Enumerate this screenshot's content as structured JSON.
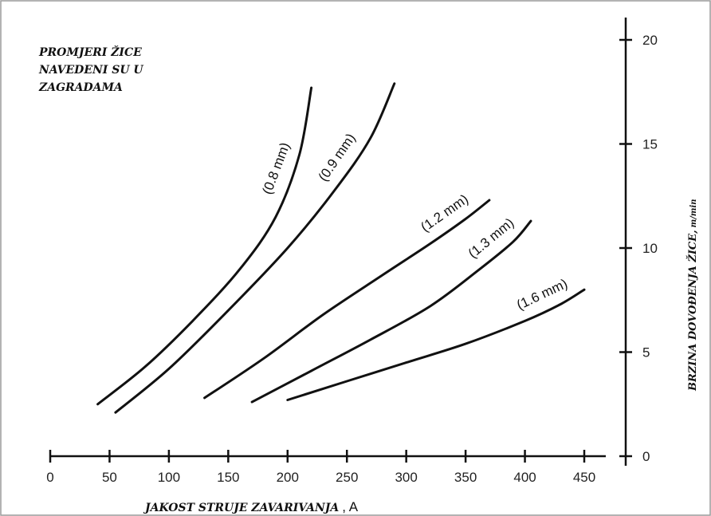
{
  "chart_data": {
    "type": "line",
    "annotation": [
      "PROMJERI ŽICE",
      "NAVEDENI SU U",
      "ZAGRADAMA"
    ],
    "xlabel": "JAKOST STRUJE ZAVARIVANJA",
    "xlabel_unit": ", A",
    "ylabel": "BRZINA DOVOĐENJA ŽICE,",
    "ylabel_unit": "m/min",
    "xlim": [
      0,
      450
    ],
    "ylim": [
      0,
      20
    ],
    "x_ticks": [
      0,
      50,
      100,
      150,
      200,
      250,
      300,
      350,
      400,
      450
    ],
    "y_ticks": [
      0,
      5,
      10,
      15,
      20
    ],
    "grid": false,
    "y_axis_position": "right",
    "series": [
      {
        "name": "(0.8 mm)",
        "points": [
          [
            40,
            2.5
          ],
          [
            80,
            4.3
          ],
          [
            120,
            6.5
          ],
          [
            160,
            9.0
          ],
          [
            190,
            11.5
          ],
          [
            210,
            14.5
          ],
          [
            220,
            17.7
          ]
        ]
      },
      {
        "name": "(0.9 mm)",
        "points": [
          [
            55,
            2.1
          ],
          [
            100,
            4.2
          ],
          [
            150,
            7.0
          ],
          [
            200,
            10.0
          ],
          [
            240,
            12.8
          ],
          [
            270,
            15.3
          ],
          [
            290,
            17.9
          ]
        ]
      },
      {
        "name": "(1.2 mm)",
        "points": [
          [
            130,
            2.8
          ],
          [
            180,
            4.7
          ],
          [
            230,
            6.8
          ],
          [
            280,
            8.7
          ],
          [
            320,
            10.2
          ],
          [
            350,
            11.4
          ],
          [
            370,
            12.3
          ]
        ]
      },
      {
        "name": "(1.3 mm)",
        "points": [
          [
            170,
            2.6
          ],
          [
            220,
            4.1
          ],
          [
            270,
            5.6
          ],
          [
            320,
            7.2
          ],
          [
            360,
            8.9
          ],
          [
            390,
            10.3
          ],
          [
            405,
            11.3
          ]
        ]
      },
      {
        "name": "(1.6 mm)",
        "points": [
          [
            200,
            2.7
          ],
          [
            250,
            3.6
          ],
          [
            300,
            4.5
          ],
          [
            350,
            5.4
          ],
          [
            400,
            6.5
          ],
          [
            430,
            7.3
          ],
          [
            450,
            8.0
          ]
        ]
      }
    ]
  }
}
